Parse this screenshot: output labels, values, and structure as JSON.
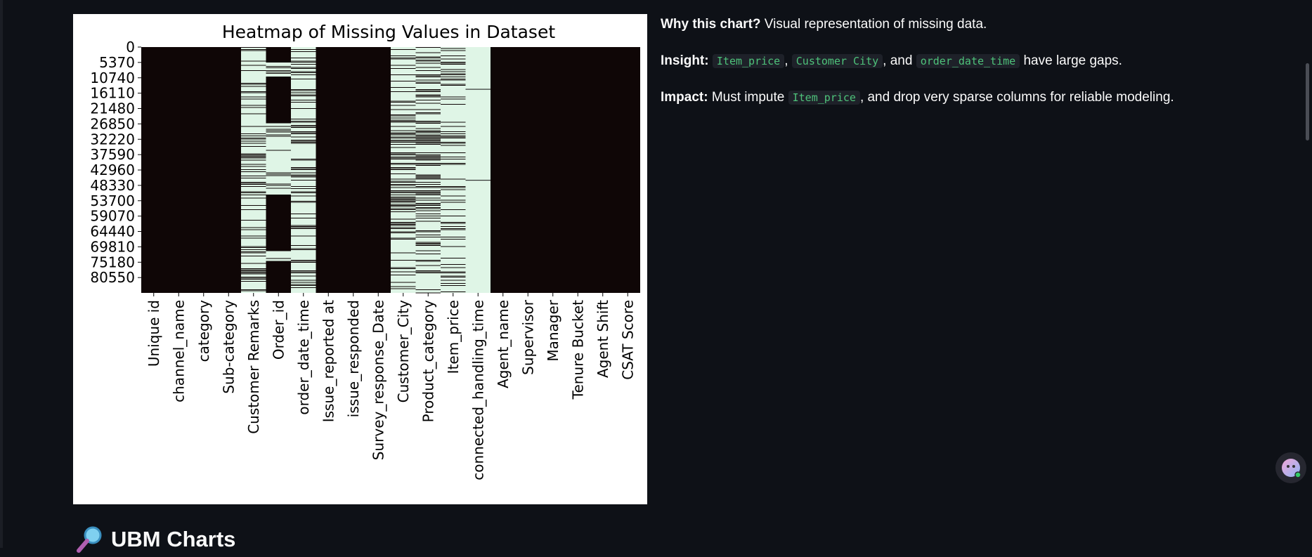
{
  "chart_data": {
    "type": "heatmap",
    "title": "Heatmap of Missing Values in Dataset",
    "columns": [
      "Unique id",
      "channel_name",
      "category",
      "Sub-category",
      "Customer Remarks",
      "Order_id",
      "order_date_time",
      "Issue_reported at",
      "issue_responded",
      "Survey_response_Date",
      "Customer_City",
      "Product_category",
      "Item_price",
      "connected_handling_time",
      "Agent_name",
      "Supervisor",
      "Manager",
      "Tenure Bucket",
      "Agent Shift",
      "CSAT Score"
    ],
    "row_ticks": [
      "0",
      "5370",
      "10740",
      "16110",
      "21480",
      "26850",
      "32220",
      "37590",
      "42960",
      "48330",
      "53700",
      "59070",
      "64440",
      "69810",
      "75180",
      "80550"
    ],
    "n_rows": 85907,
    "colors": {
      "present": "#0f0606",
      "missing": "#dff5e6"
    },
    "missing_pattern": {
      "Unique id": "none",
      "channel_name": "none",
      "category": "none",
      "Sub-category": "none",
      "Customer Remarks": "high",
      "Order_id": "medium",
      "order_date_time": "high",
      "Issue_reported at": "none",
      "issue_responded": "none",
      "Survey_response_Date": "none",
      "Customer_City": "high",
      "Product_category": "high",
      "Item_price": "high",
      "connected_handling_time": "almost all",
      "Agent_name": "none",
      "Supervisor": "none",
      "Manager": "none",
      "Tenure Bucket": "none",
      "Agent Shift": "none",
      "CSAT Score": "none"
    }
  },
  "notes": {
    "why_label": "Why this chart?",
    "why_text": " Visual representation of missing data.",
    "insight_label": "Insight:",
    "insight_code1": "Item_price",
    "insight_sep1": ",",
    "insight_code2": "Customer City",
    "insight_sep2": ", and",
    "insight_code3": "order_date_time",
    "insight_text": "have large gaps.",
    "impact_label": "Impact:",
    "impact_text1": " Must impute",
    "impact_code": "Item_price",
    "impact_text2": ", and drop very sparse columns for reliable modeling."
  },
  "section": {
    "title": "UBM Charts",
    "icon": "magnifier-icon"
  },
  "assistant": {
    "icon": "assistant-avatar-icon"
  }
}
